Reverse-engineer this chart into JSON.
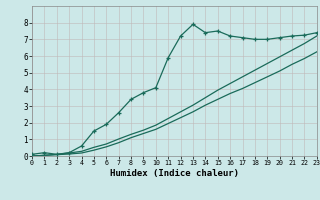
{
  "xlabel": "Humidex (Indice chaleur)",
  "bg_color": "#cce8e8",
  "grid_color": "#c0b8b8",
  "line_color": "#1a6b5a",
  "line1_x": [
    0,
    1,
    2,
    3,
    4,
    5,
    6,
    7,
    8,
    9,
    10,
    11,
    12,
    13,
    14,
    15,
    16,
    17,
    18,
    19,
    20,
    21,
    22,
    23
  ],
  "line1_y": [
    0.1,
    0.2,
    0.1,
    0.2,
    0.6,
    1.5,
    1.9,
    2.6,
    3.4,
    3.8,
    4.1,
    5.9,
    7.2,
    7.9,
    7.4,
    7.5,
    7.2,
    7.1,
    7.0,
    7.0,
    7.1,
    7.2,
    7.25,
    7.4
  ],
  "line2_x": [
    0,
    1,
    2,
    3,
    4,
    5,
    6,
    7,
    8,
    9,
    10,
    11,
    12,
    13,
    14,
    15,
    16,
    17,
    18,
    19,
    20,
    21,
    22,
    23
  ],
  "line2_y": [
    0.0,
    0.04,
    0.08,
    0.12,
    0.18,
    0.35,
    0.55,
    0.8,
    1.1,
    1.35,
    1.6,
    1.95,
    2.3,
    2.65,
    3.05,
    3.4,
    3.75,
    4.05,
    4.4,
    4.75,
    5.1,
    5.5,
    5.85,
    6.25
  ],
  "line3_x": [
    0,
    1,
    2,
    3,
    4,
    5,
    6,
    7,
    8,
    9,
    10,
    11,
    12,
    13,
    14,
    15,
    16,
    17,
    18,
    19,
    20,
    21,
    22,
    23
  ],
  "line3_y": [
    0.0,
    0.04,
    0.1,
    0.18,
    0.28,
    0.52,
    0.72,
    1.02,
    1.3,
    1.55,
    1.85,
    2.25,
    2.65,
    3.05,
    3.5,
    3.95,
    4.35,
    4.75,
    5.15,
    5.55,
    5.95,
    6.35,
    6.75,
    7.2
  ],
  "xlim": [
    0,
    23
  ],
  "ylim": [
    0,
    9
  ],
  "xticks": [
    0,
    1,
    2,
    3,
    4,
    5,
    6,
    7,
    8,
    9,
    10,
    11,
    12,
    13,
    14,
    15,
    16,
    17,
    18,
    19,
    20,
    21,
    22,
    23
  ],
  "yticks": [
    0,
    1,
    2,
    3,
    4,
    5,
    6,
    7,
    8
  ]
}
